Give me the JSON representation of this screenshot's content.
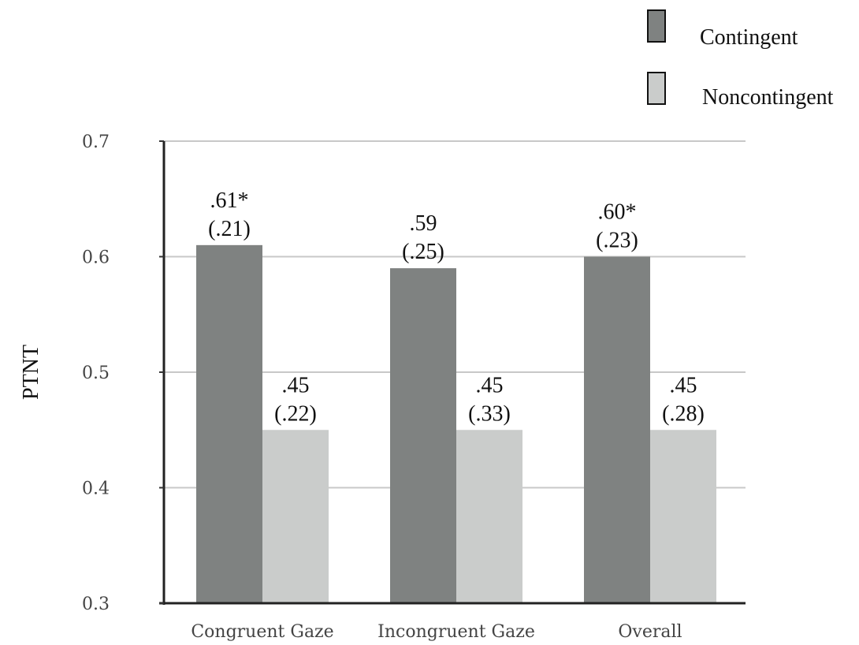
{
  "chart_data": {
    "type": "bar",
    "categories": [
      "Congruent Gaze",
      "Incongruent Gaze",
      "Overall"
    ],
    "series": [
      {
        "name": "Contingent",
        "values": [
          0.61,
          0.59,
          0.6
        ],
        "labels": [
          ".61*",
          ".59",
          ".60*"
        ],
        "sd_labels": [
          "(.21)",
          "(.25)",
          "(.23)"
        ],
        "color": "#7f8281"
      },
      {
        "name": "Noncontingent",
        "values": [
          0.45,
          0.45,
          0.45
        ],
        "labels": [
          ".45",
          ".45",
          ".45"
        ],
        "sd_labels": [
          "(.22)",
          "(.33)",
          "(.28)"
        ],
        "color": "#cacccb"
      }
    ],
    "ylabel": "PTNT",
    "xlabel": "",
    "ylim": [
      0.3,
      0.7
    ],
    "yticks": [
      "0.3",
      "0.4",
      "0.5",
      "0.6",
      "0.7"
    ],
    "grid": true,
    "legend_position": "top-right"
  }
}
